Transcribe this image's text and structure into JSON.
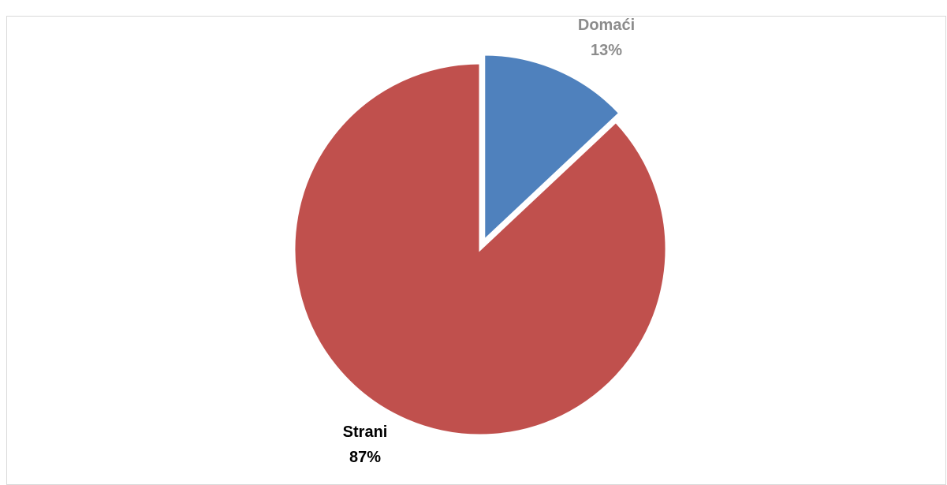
{
  "chart_data": {
    "type": "pie",
    "title": "",
    "categories": [
      "Domaći",
      "Strani"
    ],
    "values": [
      13,
      87
    ],
    "value_labels": [
      "13%",
      "87%"
    ],
    "colors": [
      "#4f81bd",
      "#c0504d"
    ],
    "label_colors": [
      "#8c8c8c",
      "#000000"
    ],
    "exploded": [
      true,
      false
    ],
    "start_angle": "12 o'clock",
    "direction": "clockwise",
    "legend": "none"
  }
}
